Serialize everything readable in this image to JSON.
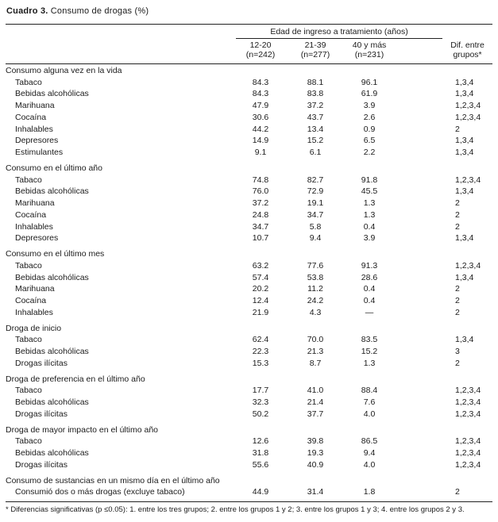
{
  "caption": {
    "label": "Cuadro 3.",
    "text": " Consumo de drogas (%)"
  },
  "header": {
    "group_label": "Edad de ingreso a tratamiento (años)",
    "columns": [
      {
        "line1": "12-20",
        "line2": "(n=242)"
      },
      {
        "line1": "21-39",
        "line2": "(n=277)"
      },
      {
        "line1": "40 y más",
        "line2": "(n=231)"
      },
      {
        "line1": "Dif. entre",
        "line2": "grupos*"
      }
    ]
  },
  "table": {
    "sections": [
      {
        "heading": "Consumo alguna vez en la vida",
        "rows": [
          {
            "label": "Tabaco",
            "values": [
              "84.3",
              "88.1",
              "96.1",
              "1,3,4"
            ]
          },
          {
            "label": "Bebidas alcohólicas",
            "values": [
              "84.3",
              "83.8",
              "61.9",
              "1,3,4"
            ]
          },
          {
            "label": "Marihuana",
            "values": [
              "47.9",
              "37.2",
              "3.9",
              "1,2,3,4"
            ]
          },
          {
            "label": "Cocaína",
            "values": [
              "30.6",
              "43.7",
              "2.6",
              "1,2,3,4"
            ]
          },
          {
            "label": "Inhalables",
            "values": [
              "44.2",
              "13.4",
              "0.9",
              "2"
            ]
          },
          {
            "label": "Depresores",
            "values": [
              "14.9",
              "15.2",
              "6.5",
              "1,3,4"
            ]
          },
          {
            "label": "Estimulantes",
            "values": [
              "9.1",
              "6.1",
              "2.2",
              "1,3,4"
            ]
          }
        ]
      },
      {
        "heading": "Consumo en el último año",
        "rows": [
          {
            "label": "Tabaco",
            "values": [
              "74.8",
              "82.7",
              "91.8",
              "1,2,3,4"
            ]
          },
          {
            "label": "Bebidas alcohólicas",
            "values": [
              "76.0",
              "72.9",
              "45.5",
              "1,3,4"
            ]
          },
          {
            "label": "Marihuana",
            "values": [
              "37.2",
              "19.1",
              "1.3",
              "2"
            ]
          },
          {
            "label": "Cocaína",
            "values": [
              "24.8",
              "34.7",
              "1.3",
              "2"
            ]
          },
          {
            "label": "Inhalables",
            "values": [
              "34.7",
              "5.8",
              "0.4",
              "2"
            ]
          },
          {
            "label": "Depresores",
            "values": [
              "10.7",
              "9.4",
              "3.9",
              "1,3,4"
            ]
          }
        ]
      },
      {
        "heading": "Consumo en el último mes",
        "rows": [
          {
            "label": "Tabaco",
            "values": [
              "63.2",
              "77.6",
              "91.3",
              "1,2,3,4"
            ]
          },
          {
            "label": "Bebidas alcohólicas",
            "values": [
              "57.4",
              "53.8",
              "28.6",
              "1,3,4"
            ]
          },
          {
            "label": "Marihuana",
            "values": [
              "20.2",
              "11.2",
              "0.4",
              "2"
            ]
          },
          {
            "label": "Cocaína",
            "values": [
              "12.4",
              "24.2",
              "0.4",
              "2"
            ]
          },
          {
            "label": "Inhalables",
            "values": [
              "21.9",
              "4.3",
              "—",
              "2"
            ]
          }
        ]
      },
      {
        "heading": "Droga de inicio",
        "rows": [
          {
            "label": "Tabaco",
            "values": [
              "62.4",
              "70.0",
              "83.5",
              "1,3,4"
            ]
          },
          {
            "label": "Bebidas alcohólicas",
            "values": [
              "22.3",
              "21.3",
              "15.2",
              "3"
            ]
          },
          {
            "label": "Drogas ilícitas",
            "values": [
              "15.3",
              "8.7",
              "1.3",
              "2"
            ]
          }
        ]
      },
      {
        "heading": "Droga de preferencia en el último año",
        "rows": [
          {
            "label": "Tabaco",
            "values": [
              "17.7",
              "41.0",
              "88.4",
              "1,2,3,4"
            ]
          },
          {
            "label": "Bebidas alcohólicas",
            "values": [
              "32.3",
              "21.4",
              "7.6",
              "1,2,3,4"
            ]
          },
          {
            "label": "Drogas ilícitas",
            "values": [
              "50.2",
              "37.7",
              "4.0",
              "1,2,3,4"
            ]
          }
        ]
      },
      {
        "heading": "Droga de mayor impacto en el último año",
        "rows": [
          {
            "label": "Tabaco",
            "values": [
              "12.6",
              "39.8",
              "86.5",
              "1,2,3,4"
            ]
          },
          {
            "label": "Bebidas alcohólicas",
            "values": [
              "31.8",
              "19.3",
              "9.4",
              "1,2,3,4"
            ]
          },
          {
            "label": "Drogas ilícitas",
            "values": [
              "55.6",
              "40.9",
              "4.0",
              "1,2,3,4"
            ]
          }
        ]
      },
      {
        "heading": "Consumo de sustancias en un mismo día en el último año",
        "rows": [
          {
            "label": "Consumió dos o más drogas (excluye tabaco)",
            "values": [
              "44.9",
              "31.4",
              "1.8",
              "2"
            ]
          }
        ]
      }
    ]
  },
  "footnote": "* Diferencias significativas (p ≤0.05): 1. entre los tres grupos; 2. entre los grupos 1 y 2; 3. entre los grupos 1 y 3; 4. entre los grupos 2 y 3."
}
